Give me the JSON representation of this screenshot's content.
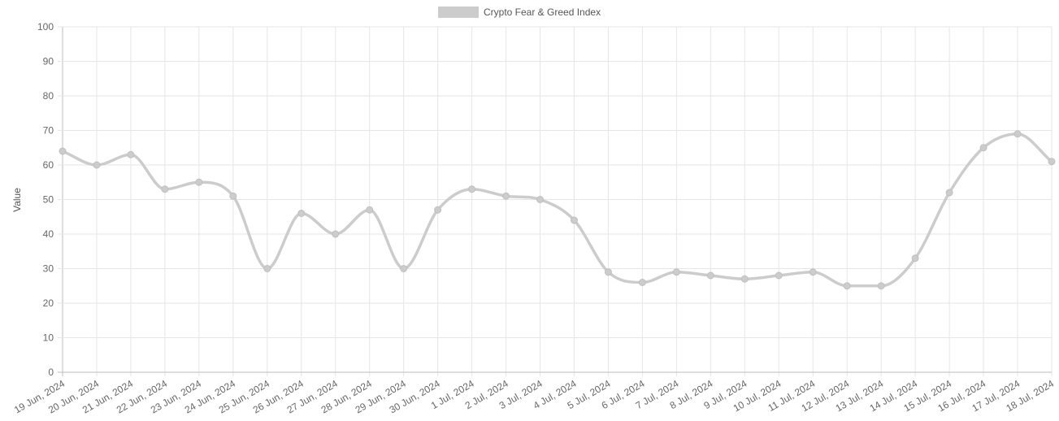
{
  "chart_data": {
    "type": "line",
    "title": "",
    "xlabel": "",
    "ylabel": "Value",
    "ylim": [
      0,
      100
    ],
    "yticks": [
      0,
      10,
      20,
      30,
      40,
      50,
      60,
      70,
      80,
      90,
      100
    ],
    "grid": true,
    "legend_position": "top-center",
    "categories": [
      "19 Jun, 2024",
      "20 Jun, 2024",
      "21 Jun, 2024",
      "22 Jun, 2024",
      "23 Jun, 2024",
      "24 Jun, 2024",
      "25 Jun, 2024",
      "26 Jun, 2024",
      "27 Jun, 2024",
      "28 Jun, 2024",
      "29 Jun, 2024",
      "30 Jun, 2024",
      "1 Jul, 2024",
      "2 Jul, 2024",
      "3 Jul, 2024",
      "4 Jul, 2024",
      "5 Jul, 2024",
      "6 Jul, 2024",
      "7 Jul, 2024",
      "8 Jul, 2024",
      "9 Jul, 2024",
      "10 Jul, 2024",
      "11 Jul, 2024",
      "12 Jul, 2024",
      "13 Jul, 2024",
      "14 Jul, 2024",
      "15 Jul, 2024",
      "16 Jul, 2024",
      "17 Jul, 2024",
      "18 Jul, 2024"
    ],
    "series": [
      {
        "name": "Crypto Fear & Greed Index",
        "color": "#cccccc",
        "values": [
          64,
          60,
          63,
          53,
          55,
          51,
          30,
          46,
          40,
          47,
          30,
          47,
          53,
          51,
          50,
          44,
          29,
          26,
          29,
          28,
          27,
          28,
          29,
          25,
          25,
          33,
          52,
          65,
          69,
          61
        ]
      }
    ]
  }
}
